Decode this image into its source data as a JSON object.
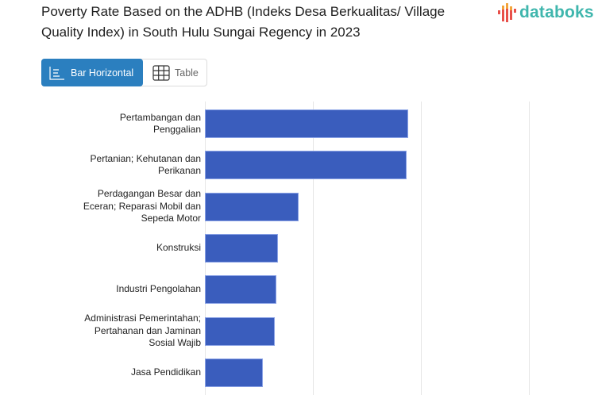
{
  "header": {
    "title": "Poverty Rate Based on the ADHB (Indeks Desa Berkualitas/ Village Quality Index) in South Hulu Sungai Regency in 2023",
    "logo_text": "databoks",
    "logo_icon": "bar-signal-logo-icon"
  },
  "view_toggle": {
    "options": [
      {
        "label": "Bar Horizontal",
        "icon": "bar-chart-icon",
        "active": true
      },
      {
        "label": "Table",
        "icon": "table-grid-icon",
        "active": false
      }
    ]
  },
  "colors": {
    "bar": "#3a5dbd",
    "accent": "#2b7fbf",
    "logo": "#3fb6ad"
  },
  "chart_data": {
    "type": "bar",
    "orientation": "horizontal",
    "title": "Poverty Rate Based on the ADHB (Indeks Desa Berkualitas/ Village Quality Index) in South Hulu Sungai Regency in 2023",
    "categories": [
      "Pertambangan dan Penggalian",
      "Pertanian; Kehutanan dan Perikanan",
      "Perdagangan Besar dan Eceran; Reparasi Mobil dan Sepeda Motor",
      "Konstruksi",
      "Industri Pengolahan",
      "Administrasi Pemerintahan; Pertahanan dan Jaminan Sosial Wajib",
      "Jasa Pendidikan"
    ],
    "label_lines": [
      [
        "Pertambangan dan",
        "Penggalian"
      ],
      [
        "Pertanian; Kehutanan dan",
        "Perikanan"
      ],
      [
        "Perdagangan Besar dan",
        "Eceran; Reparasi Mobil dan",
        "Sepeda Motor"
      ],
      [
        "Konstruksi"
      ],
      [
        "Industri Pengolahan"
      ],
      [
        "Administrasi Pemerintahan;",
        "Pertahanan dan Jaminan",
        "Sosial Wajib"
      ],
      [
        "Jasa Pendidikan"
      ]
    ],
    "values": [
      1.88,
      1.87,
      0.87,
      0.68,
      0.66,
      0.65,
      0.54
    ],
    "xlabel": "",
    "ylabel": "",
    "xlim": [
      0,
      3
    ],
    "grid": true,
    "gridlines_at": [
      0,
      1,
      2,
      3
    ],
    "legend": "none",
    "axis_tick_labels_visible": false
  }
}
